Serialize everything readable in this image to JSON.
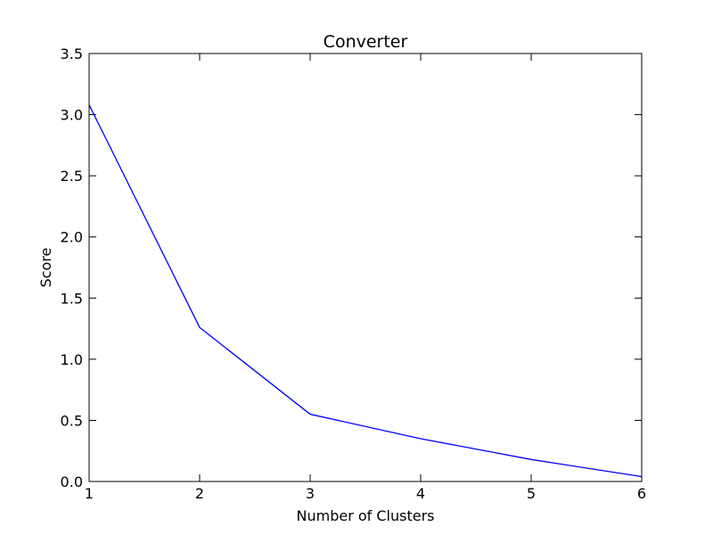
{
  "chart_data": {
    "type": "line",
    "title": "Converter",
    "xlabel": "Number of Clusters",
    "ylabel": "Score",
    "xlim": [
      1,
      6
    ],
    "ylim": [
      0,
      3.5
    ],
    "x_ticks": [
      "1",
      "2",
      "3",
      "4",
      "5",
      "6"
    ],
    "y_ticks": [
      "0.0",
      "0.5",
      "1.0",
      "1.5",
      "2.0",
      "2.5",
      "3.0",
      "3.5"
    ],
    "grid": false,
    "series": [
      {
        "color": "#0000ff",
        "x": [
          1,
          2,
          3,
          4,
          5,
          6
        ],
        "y": [
          3.08,
          1.26,
          0.55,
          0.35,
          0.18,
          0.04
        ]
      }
    ]
  }
}
